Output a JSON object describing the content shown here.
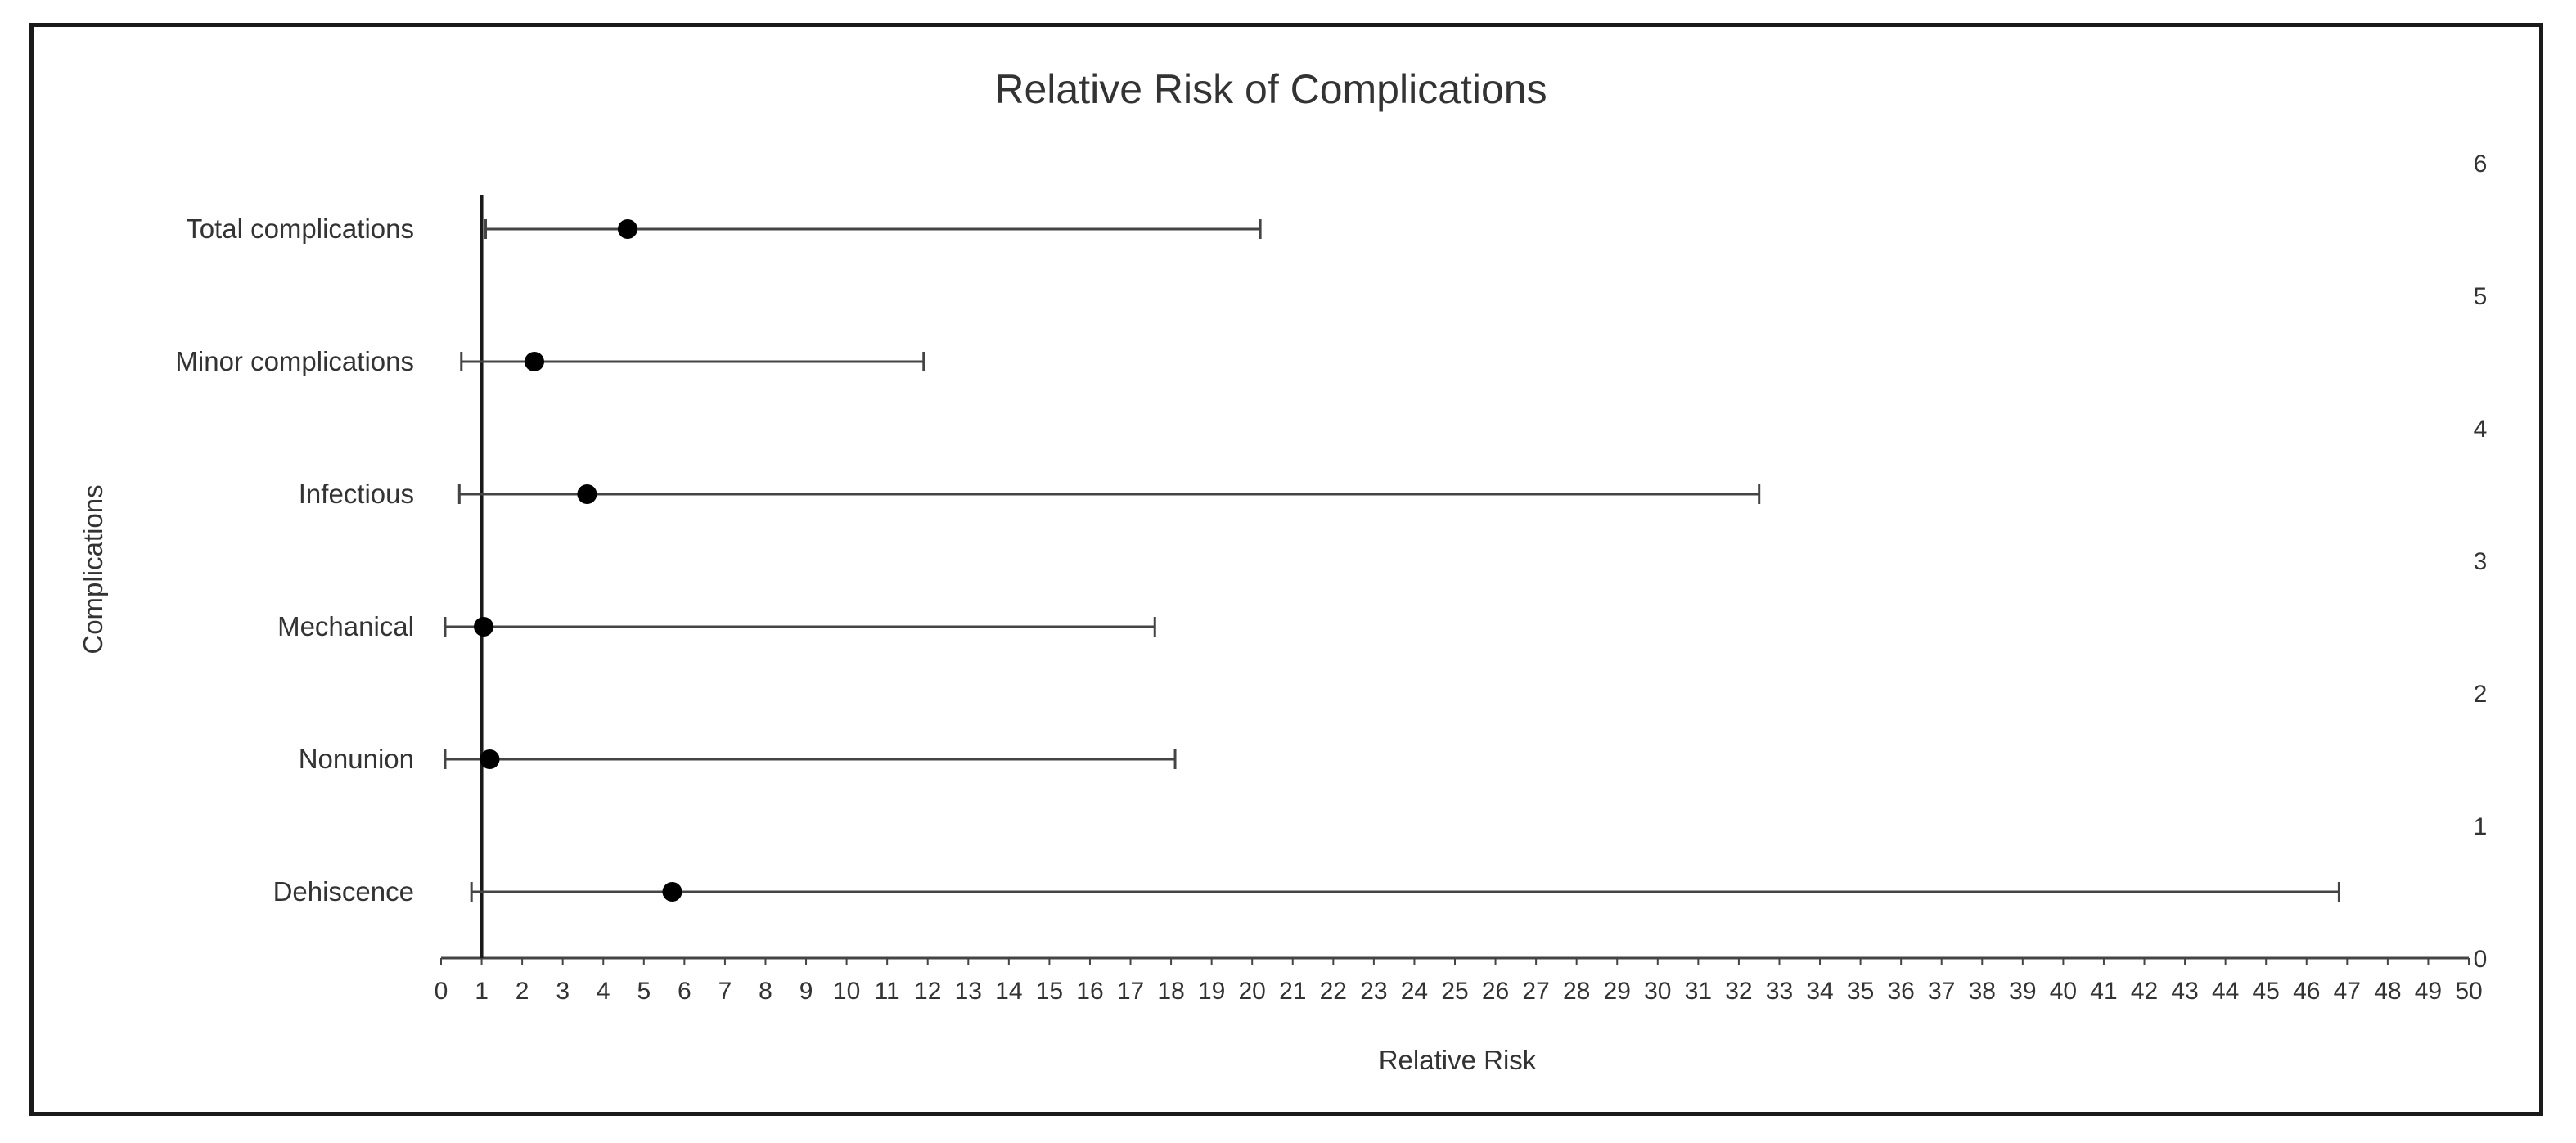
{
  "chart_data": {
    "type": "forest",
    "title": "Relative Risk of Complications",
    "xlabel": "Relative Risk",
    "ylabel": "Complications",
    "xlim": [
      0,
      50
    ],
    "x_ticks": [
      0,
      1,
      2,
      3,
      4,
      5,
      6,
      7,
      8,
      9,
      10,
      11,
      12,
      13,
      14,
      15,
      16,
      17,
      18,
      19,
      20,
      21,
      22,
      23,
      24,
      25,
      26,
      27,
      28,
      29,
      30,
      31,
      32,
      33,
      34,
      35,
      36,
      37,
      38,
      39,
      40,
      41,
      42,
      43,
      44,
      45,
      46,
      47,
      48,
      49,
      50
    ],
    "y2lim": [
      0,
      6
    ],
    "y2_ticks": [
      0,
      1,
      2,
      3,
      4,
      5,
      6
    ],
    "reference_line": 1,
    "grid": false,
    "legend": "none",
    "marker_color": "#000000",
    "line_color": "#444444",
    "categories": [
      "Total complications",
      "Minor complications",
      "Infectious",
      "Mechanical",
      "Nonunion",
      "Dehiscence"
    ],
    "y_positions": [
      5.5,
      4.5,
      3.5,
      2.5,
      1.5,
      0.5
    ],
    "rr": [
      4.6,
      2.3,
      3.6,
      1.05,
      1.2,
      5.7
    ],
    "ci_low": [
      1.1,
      0.5,
      0.45,
      0.1,
      0.1,
      0.75
    ],
    "ci_high": [
      20.2,
      11.9,
      32.5,
      17.6,
      18.1,
      46.8
    ]
  }
}
